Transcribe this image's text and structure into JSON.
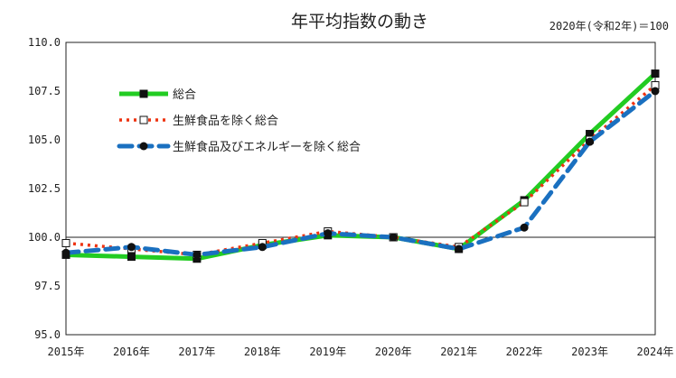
{
  "chart_data": {
    "type": "line",
    "title": "年平均指数の動き",
    "note": "2020年(令和2年)＝100",
    "categories": [
      "2015年",
      "2016年",
      "2017年",
      "2018年",
      "2019年",
      "2020年",
      "2021年",
      "2022年",
      "2023年",
      "2024年"
    ],
    "ylim": [
      95.0,
      110.0
    ],
    "yticks": [
      "95.0",
      "97.5",
      "100.0",
      "102.5",
      "105.0",
      "107.5",
      "110.0"
    ],
    "reference_line": 100.0,
    "grid": false,
    "legend_position": "top-left",
    "series": [
      {
        "name": "総合",
        "color": "#22cc22",
        "style": "solid",
        "marker": "filled-square",
        "values": [
          99.1,
          99.0,
          98.9,
          99.6,
          100.1,
          100.0,
          99.4,
          101.9,
          105.3,
          108.4
        ]
      },
      {
        "name": "生鮮食品を除く総合",
        "color": "#ee3311",
        "style": "dotted",
        "marker": "open-square",
        "values": [
          99.7,
          99.4,
          99.1,
          99.7,
          100.3,
          100.0,
          99.5,
          101.8,
          105.0,
          107.8
        ]
      },
      {
        "name": "生鮮食品及びエネルギーを除く総合",
        "color": "#1a70c0",
        "style": "dashed",
        "marker": "filled-circle",
        "values": [
          99.2,
          99.5,
          99.1,
          99.5,
          100.2,
          100.0,
          99.4,
          100.5,
          104.9,
          107.5
        ]
      }
    ]
  }
}
